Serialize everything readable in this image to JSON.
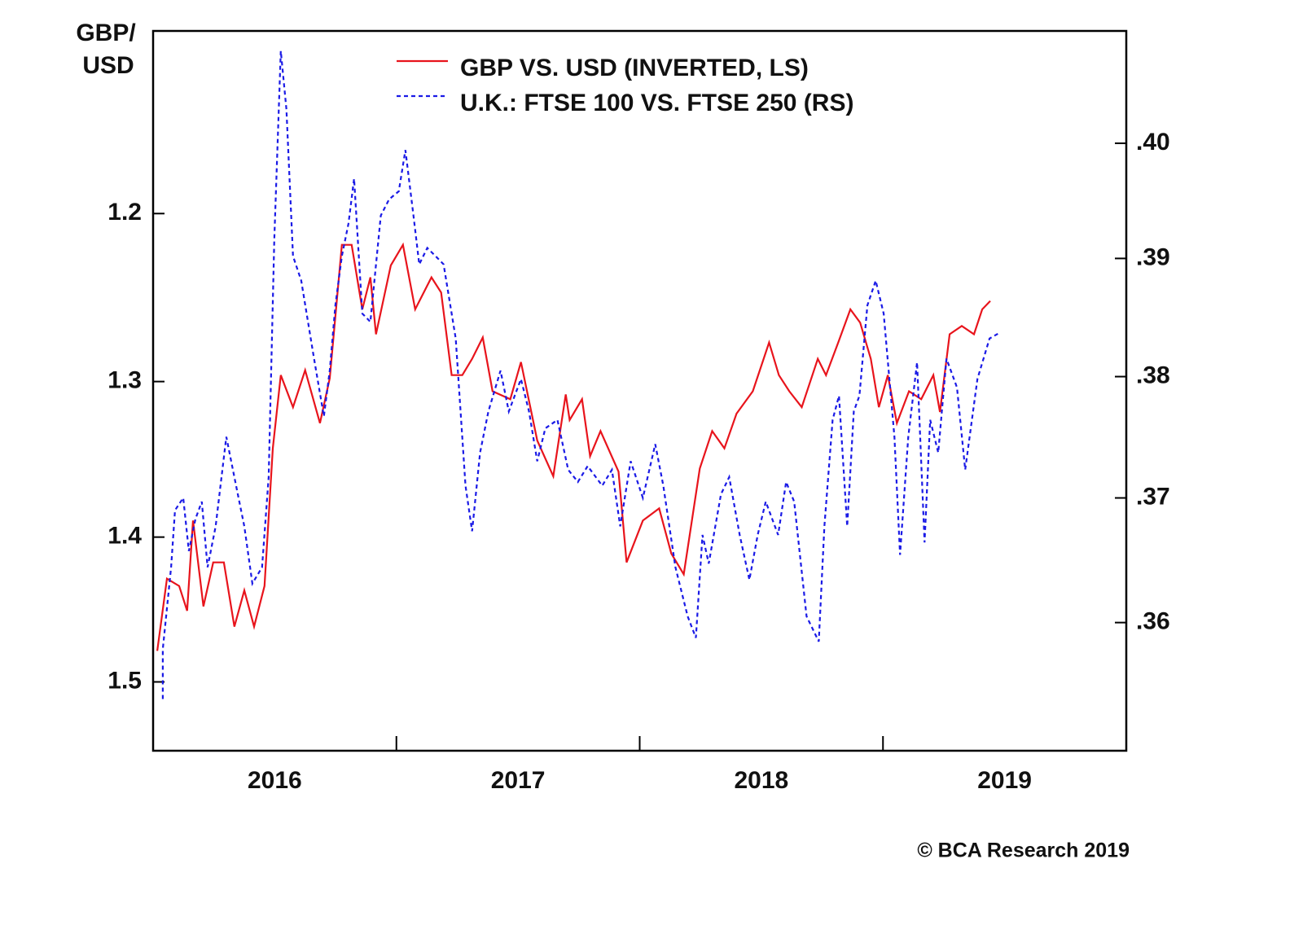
{
  "chart_data": {
    "type": "line",
    "y_label": [
      "GBP/",
      "USD"
    ],
    "credit": "© BCA Research 2019",
    "xlim": [
      2016,
      2020
    ],
    "xticks": [
      {
        "value": 2016.5,
        "label": "2016"
      },
      {
        "value": 2017.5,
        "label": "2017"
      },
      {
        "value": 2018.5,
        "label": "2018"
      },
      {
        "value": 2019.5,
        "label": "2019"
      }
    ],
    "x_tick_marks": [
      2017,
      2018,
      2019
    ],
    "ylim": [
      1.55,
      1.1
    ],
    "ylog": true,
    "yticks": [
      1.2,
      1.3,
      1.4,
      1.5
    ],
    "y2lim": [
      0.35,
      0.41
    ],
    "y2log": true,
    "y2ticks": [
      {
        "value": 0.36,
        "label": ".36"
      },
      {
        "value": 0.37,
        "label": ".37"
      },
      {
        "value": 0.38,
        "label": ".38"
      },
      {
        "value": 0.39,
        "label": ".39"
      },
      {
        "value": 0.4,
        "label": ".40"
      }
    ],
    "series": [
      {
        "name": "GBP VS. USD (INVERTED, LS)",
        "color": "#e8141c",
        "dash": false,
        "axis": "y",
        "x": [
          2016.017,
          2016.057,
          2016.107,
          2016.14,
          2016.164,
          2016.207,
          2016.247,
          2016.291,
          2016.334,
          2016.375,
          2016.415,
          2016.458,
          2016.492,
          2016.525,
          2016.575,
          2016.625,
          2016.686,
          2016.726,
          2016.776,
          2016.816,
          2016.86,
          2016.893,
          2016.916,
          2016.977,
          2017.027,
          2017.077,
          2017.144,
          2017.184,
          2017.227,
          2017.271,
          2017.311,
          2017.355,
          2017.395,
          2017.468,
          2017.512,
          2017.579,
          2017.645,
          2017.696,
          2017.712,
          2017.763,
          2017.796,
          2017.839,
          2017.913,
          2017.946,
          2018.013,
          2018.08,
          2018.13,
          2018.181,
          2018.247,
          2018.298,
          2018.348,
          2018.398,
          2018.465,
          2018.532,
          2018.572,
          2018.615,
          2018.666,
          2018.732,
          2018.766,
          2018.816,
          2018.866,
          2018.906,
          2018.95,
          2018.983,
          2019.02,
          2019.057,
          2019.107,
          2019.157,
          2019.207,
          2019.234,
          2019.274,
          2019.324,
          2019.374,
          2019.408,
          2019.441
        ],
        "values": [
          1.478,
          1.428,
          1.433,
          1.45,
          1.389,
          1.447,
          1.417,
          1.417,
          1.461,
          1.436,
          1.461,
          1.433,
          1.342,
          1.296,
          1.316,
          1.293,
          1.326,
          1.298,
          1.218,
          1.218,
          1.256,
          1.237,
          1.271,
          1.23,
          1.218,
          1.256,
          1.237,
          1.246,
          1.296,
          1.296,
          1.286,
          1.273,
          1.306,
          1.311,
          1.288,
          1.337,
          1.36,
          1.308,
          1.324,
          1.311,
          1.347,
          1.331,
          1.357,
          1.417,
          1.389,
          1.381,
          1.411,
          1.425,
          1.355,
          1.331,
          1.342,
          1.32,
          1.306,
          1.276,
          1.296,
          1.306,
          1.316,
          1.286,
          1.296,
          1.276,
          1.256,
          1.264,
          1.286,
          1.316,
          1.296,
          1.326,
          1.306,
          1.311,
          1.296,
          1.319,
          1.271,
          1.266,
          1.271,
          1.256,
          1.251
        ]
      },
      {
        "name": "U.K.: FTSE 100 VS. FTSE 250 (RS)",
        "color": "#1a1ae6",
        "dash": true,
        "axis": "y2",
        "x": [
          2016.04,
          2016.04,
          2016.074,
          2016.09,
          2016.124,
          2016.147,
          2016.174,
          2016.2,
          2016.224,
          2016.257,
          2016.301,
          2016.341,
          2016.375,
          2016.408,
          2016.448,
          2016.475,
          2016.498,
          2016.525,
          2016.548,
          2016.575,
          2016.609,
          2016.659,
          2016.702,
          2016.726,
          2016.749,
          2016.776,
          2016.803,
          2016.826,
          2016.86,
          2016.893,
          2016.936,
          2016.97,
          2017.01,
          2017.037,
          2017.07,
          2017.094,
          2017.127,
          2017.161,
          2017.194,
          2017.244,
          2017.284,
          2017.311,
          2017.344,
          2017.378,
          2017.428,
          2017.462,
          2017.512,
          2017.545,
          2017.579,
          2017.612,
          2017.662,
          2017.706,
          2017.746,
          2017.786,
          2017.846,
          2017.886,
          2017.92,
          2017.963,
          2018.013,
          2018.064,
          2018.097,
          2018.147,
          2018.197,
          2018.231,
          2018.258,
          2018.284,
          2018.334,
          2018.368,
          2018.411,
          2018.451,
          2018.485,
          2018.518,
          2018.569,
          2018.602,
          2018.635,
          2018.686,
          2018.736,
          2018.759,
          2018.793,
          2018.819,
          2018.853,
          2018.88,
          2018.903,
          2018.936,
          2018.97,
          2019.003,
          2019.047,
          2019.07,
          2019.104,
          2019.14,
          2019.171,
          2019.194,
          2019.227,
          2019.261,
          2019.304,
          2019.338,
          2019.388,
          2019.438,
          2019.472
        ],
        "values": [
          0.354,
          0.3579,
          0.3644,
          0.369,
          0.37,
          0.3657,
          0.3683,
          0.3697,
          0.3644,
          0.3677,
          0.375,
          0.371,
          0.3677,
          0.3631,
          0.3644,
          0.3717,
          0.3916,
          0.4082,
          0.403,
          0.3902,
          0.3881,
          0.3818,
          0.3767,
          0.3805,
          0.386,
          0.3902,
          0.393,
          0.3969,
          0.3853,
          0.3846,
          0.3937,
          0.3951,
          0.3958,
          0.3994,
          0.3937,
          0.3895,
          0.3909,
          0.3902,
          0.3895,
          0.3832,
          0.371,
          0.3673,
          0.3737,
          0.3771,
          0.3805,
          0.3771,
          0.3798,
          0.3771,
          0.373,
          0.3757,
          0.3764,
          0.3723,
          0.3713,
          0.3726,
          0.371,
          0.3723,
          0.3677,
          0.373,
          0.37,
          0.3744,
          0.371,
          0.3644,
          0.3605,
          0.3588,
          0.367,
          0.3647,
          0.3703,
          0.3717,
          0.367,
          0.3634,
          0.367,
          0.3697,
          0.367,
          0.3713,
          0.3697,
          0.3605,
          0.3585,
          0.3677,
          0.3764,
          0.3784,
          0.3677,
          0.3771,
          0.3784,
          0.386,
          0.3881,
          0.3853,
          0.375,
          0.3654,
          0.375,
          0.3812,
          0.3664,
          0.3764,
          0.3737,
          0.3815,
          0.3791,
          0.3723,
          0.3798,
          0.3832,
          0.3836
        ]
      }
    ]
  }
}
